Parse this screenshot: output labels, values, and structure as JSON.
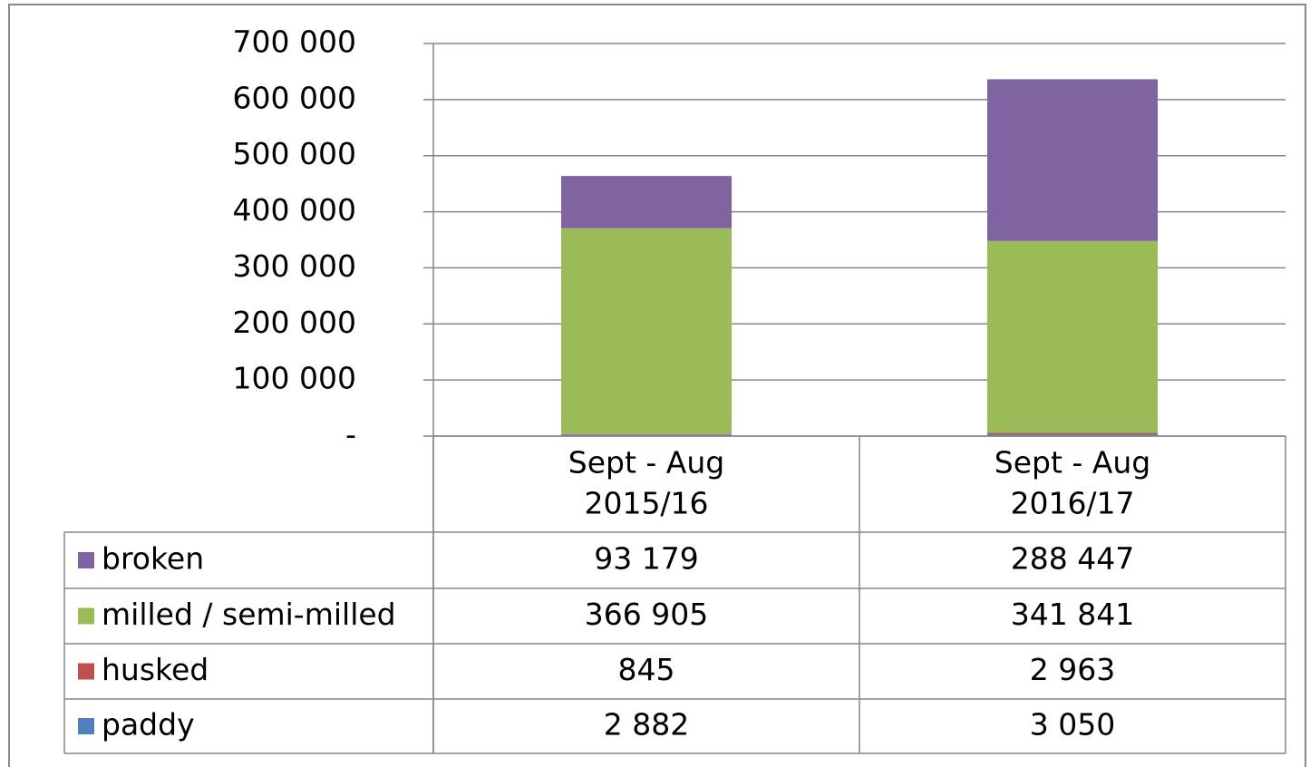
{
  "chart_data": {
    "type": "stacked_bar",
    "categories": [
      "Sept - Aug\n2015/16",
      "Sept - Aug\n2016/17"
    ],
    "series": [
      {
        "name": "broken",
        "color": "#8064a2",
        "values": [
          93179,
          288447
        ],
        "value_labels": [
          "93 179",
          "288 447"
        ]
      },
      {
        "name": "milled / semi-milled",
        "color": "#9bbb59",
        "values": [
          366905,
          341841
        ],
        "value_labels": [
          "366 905",
          "341 841"
        ]
      },
      {
        "name": "husked",
        "color": "#c0504d",
        "values": [
          845,
          2963
        ],
        "value_labels": [
          "845",
          "2 963"
        ]
      },
      {
        "name": "paddy",
        "color": "#4f81bd",
        "values": [
          2882,
          3050
        ],
        "value_labels": [
          "2 882",
          "3 050"
        ]
      }
    ],
    "ylim": [
      0,
      700000
    ],
    "yticks": [
      {
        "value": 0,
        "label": "-"
      },
      {
        "value": 100000,
        "label": "100 000"
      },
      {
        "value": 200000,
        "label": "200 000"
      },
      {
        "value": 300000,
        "label": "300 000"
      },
      {
        "value": 400000,
        "label": "400 000"
      },
      {
        "value": 500000,
        "label": "500 000"
      },
      {
        "value": 600000,
        "label": "600 000"
      },
      {
        "value": 700000,
        "label": "700 000"
      }
    ],
    "grid": true
  }
}
